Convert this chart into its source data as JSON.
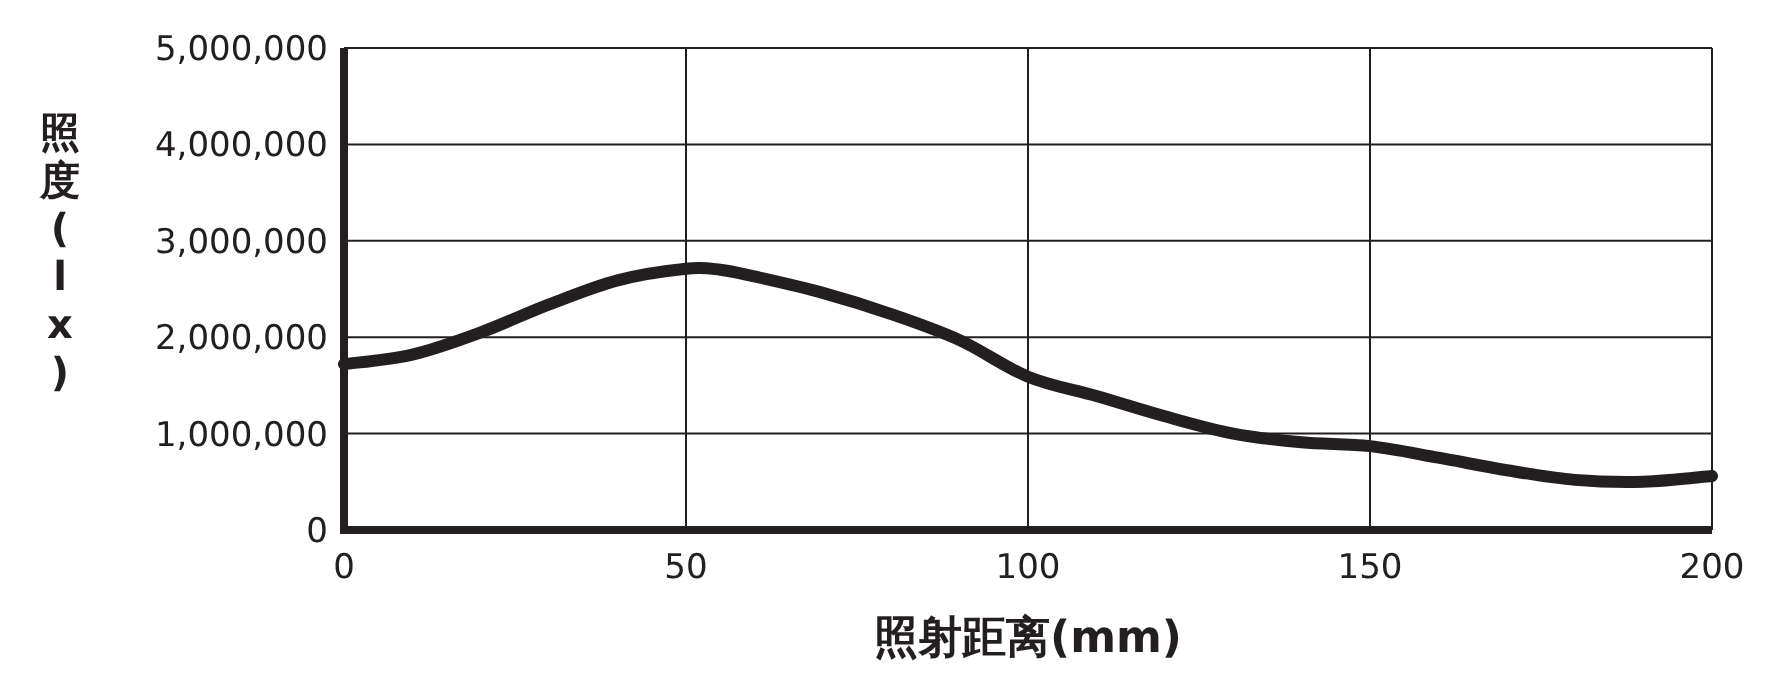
{
  "chart_data": {
    "type": "line",
    "xlabel": "照射距离(mm)",
    "ylabel": "照度(lx)",
    "x": [
      0,
      10,
      20,
      30,
      40,
      50,
      55,
      60,
      70,
      80,
      90,
      100,
      110,
      120,
      130,
      140,
      150,
      160,
      170,
      180,
      190,
      200
    ],
    "series": [
      {
        "color": "#231f20",
        "values": [
          1720000,
          1820000,
          2050000,
          2340000,
          2590000,
          2710000,
          2700000,
          2630000,
          2460000,
          2240000,
          1970000,
          1590000,
          1390000,
          1180000,
          1000000,
          910000,
          870000,
          750000,
          620000,
          520000,
          500000,
          560000
        ]
      }
    ],
    "xlim": [
      0,
      200
    ],
    "xticks": [
      0,
      50,
      100,
      150,
      200
    ],
    "ylim": [
      0,
      5000000
    ],
    "yticks": [
      {
        "value": 0,
        "label": "0"
      },
      {
        "value": 1000000,
        "label": "1,000,000"
      },
      {
        "value": 2000000,
        "label": "2,000,000"
      },
      {
        "value": 3000000,
        "label": "3,000,000"
      },
      {
        "value": 4000000,
        "label": "4,000,000"
      },
      {
        "value": 5000000,
        "label": "5,000,000"
      }
    ],
    "grid": true,
    "marker": "none",
    "line_style": "solid"
  }
}
